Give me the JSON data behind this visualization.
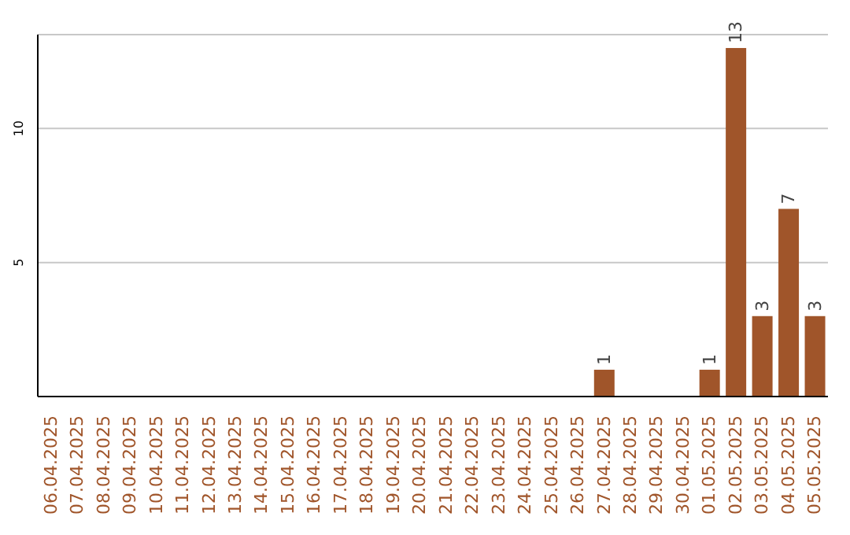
{
  "chart_data": {
    "type": "bar",
    "categories": [
      "06.04.2025",
      "07.04.2025",
      "08.04.2025",
      "09.04.2025",
      "10.04.2025",
      "11.04.2025",
      "12.04.2025",
      "13.04.2025",
      "14.04.2025",
      "15.04.2025",
      "16.04.2025",
      "17.04.2025",
      "18.04.2025",
      "19.04.2025",
      "20.04.2025",
      "21.04.2025",
      "22.04.2025",
      "23.04.2025",
      "24.04.2025",
      "25.04.2025",
      "26.04.2025",
      "27.04.2025",
      "28.04.2025",
      "29.04.2025",
      "30.04.2025",
      "01.05.2025",
      "02.05.2025",
      "03.05.2025",
      "04.05.2025",
      "05.05.2025"
    ],
    "values": [
      0,
      0,
      0,
      0,
      0,
      0,
      0,
      0,
      0,
      0,
      0,
      0,
      0,
      0,
      0,
      0,
      0,
      0,
      0,
      0,
      0,
      1,
      0,
      0,
      0,
      1,
      13,
      3,
      7,
      3
    ],
    "value_labels": [
      null,
      null,
      null,
      null,
      null,
      null,
      null,
      null,
      null,
      null,
      null,
      null,
      null,
      null,
      null,
      null,
      null,
      null,
      null,
      null,
      null,
      "1",
      null,
      null,
      null,
      "1",
      "13",
      "3",
      "7",
      "3"
    ],
    "color": "#a0552a",
    "ylim": [
      0,
      13.5
    ],
    "yticks": [
      5,
      10
    ],
    "grid": "y"
  }
}
